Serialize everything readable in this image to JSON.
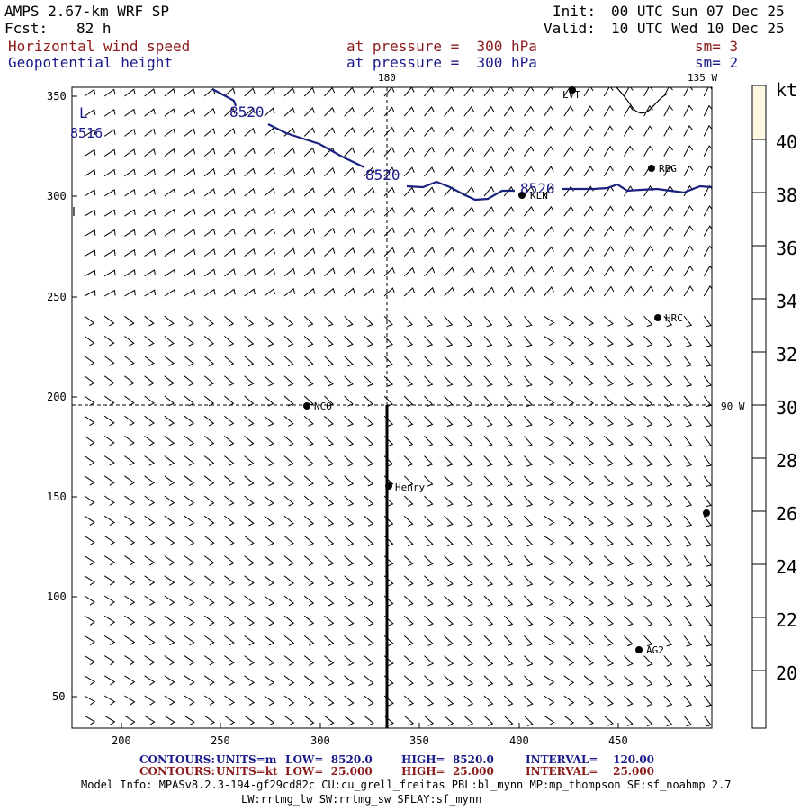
{
  "header": {
    "model_title": "AMPS 2.67-km WRF SP",
    "forecast_label": "Fcst:",
    "forecast_hours": "82 h",
    "init_label": "Init:",
    "init_time": "00 UTC Sun 07 Dec 25",
    "valid_label": "Valid:",
    "valid_time": "10 UTC Wed 10 Dec 25",
    "field1_name": "Horizontal wind speed",
    "field1_level": "at pressure =  300 hPa",
    "field1_smooth": "sm= 3",
    "field2_name": "Geopotential height",
    "field2_level": "at pressure =  300 hPa",
    "field2_smooth": "sm= 2"
  },
  "map": {
    "meridian_180_label": "180",
    "meridian_135w_label": "135 W",
    "meridian_90w_label": "90 W",
    "low_marker": "L",
    "y_ticks": [
      "350",
      "300",
      "250",
      "200",
      "150",
      "100",
      "50"
    ],
    "x_ticks": [
      "200",
      "250",
      "300",
      "350",
      "400",
      "450"
    ],
    "contour_labels": [
      "8516",
      "8520",
      "8520",
      "8520"
    ],
    "contour_color": "#1a237e",
    "stations": [
      {
        "name": "LVT"
      },
      {
        "name": "RBG"
      },
      {
        "name": "KLN"
      },
      {
        "name": "HRC"
      },
      {
        "name": "NCO"
      },
      {
        "name": "Henry"
      },
      {
        "name": "AG2"
      },
      {
        "name": ""
      }
    ]
  },
  "colorbar": {
    "unit": "kt",
    "ticks": [
      "40",
      "38",
      "36",
      "34",
      "32",
      "30",
      "28",
      "26",
      "24",
      "22",
      "20"
    ],
    "shade_color": "#fdf7e0"
  },
  "footer": {
    "contours_label": "CONTOURS:",
    "c1_units": "UNITS=m",
    "c1_low": "LOW=  8520.0",
    "c1_high": "HIGH=  8520.0",
    "c1_interval": "INTERVAL=    120.00",
    "c2_units": "UNITS=kt",
    "c2_low": "LOW=  25.000",
    "c2_high": "HIGH=  25.000",
    "c2_interval": "INTERVAL=    25.000",
    "model_info_line1": "Model Info: MPASv8.2.3-194-gf29cd82c CU:cu_grell_freitas PBL:bl_mynn MP:mp_thompson SF:sf_noahmp 2.7",
    "model_info_line2": "LW:rrtmg_lw SW:rrtmg_sw SFLAY:sf_mynn"
  }
}
